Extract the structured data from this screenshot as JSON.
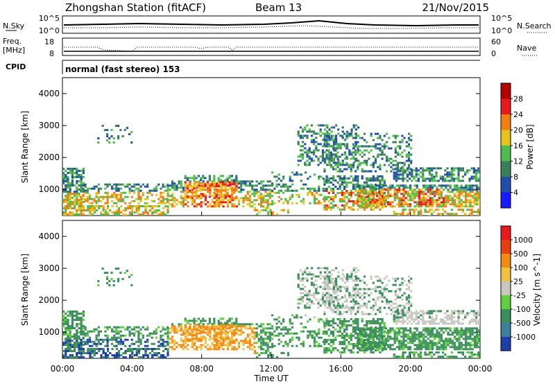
{
  "header": {
    "station": "Zhongshan Station (fitACF)",
    "beam": "Beam 13",
    "date": "21/Nov/2015"
  },
  "small_panels": {
    "nsky_label": "N.Sky",
    "nsearch_label": "N.Search",
    "freq_label_1": "Freq.",
    "freq_label_2": "[MHz]",
    "nave_label": "Nave",
    "cpid_label": "CPID",
    "cpid_value": "normal (fast stereo) 153",
    "noise_ticks": [
      "10^5",
      "10^0"
    ],
    "freq_ticks": [
      "18",
      "8"
    ],
    "nave_ticks": [
      "60",
      "0"
    ]
  },
  "chart_data": [
    {
      "type": "heatmap",
      "name": "power",
      "ylabel": "Slant Range [km]",
      "ylim": [
        180,
        4500
      ],
      "yticks": [
        1000,
        2000,
        3000,
        4000
      ],
      "xlim": [
        0,
        24
      ],
      "colorbar_label": "Power [dB]",
      "colorbar_ticks": [
        "28",
        "24",
        "20",
        "16",
        "12",
        "8",
        "4"
      ],
      "colors": [
        "#1a1aff",
        "#1f4fa8",
        "#3b7f5a",
        "#4dbb4d",
        "#e6c31a",
        "#f07f10",
        "#e61a1a",
        "#b30000"
      ],
      "grid": false
    },
    {
      "type": "heatmap",
      "name": "velocity",
      "ylabel": "Slant Range [km]",
      "ylim": [
        180,
        4500
      ],
      "yticks": [
        1000,
        2000,
        3000,
        4000
      ],
      "xlim": [
        0,
        24
      ],
      "xlabel": "Time UT",
      "xticks": [
        "00:00",
        "04:00",
        "08:00",
        "12:00",
        "16:00",
        "20:00",
        "00:00"
      ],
      "colorbar_label": "Velocity [m s^-1]",
      "colorbar_ticks": [
        "1000",
        "500",
        "100",
        "25",
        "-25",
        "-100",
        "-500",
        "-1000"
      ],
      "colors": [
        "#1f3fa8",
        "#3b7f9a",
        "#3b8f5a",
        "#5fcf3f",
        "#c8c8c0",
        "#f0c040",
        "#f08a10",
        "#e64010",
        "#e61a1a"
      ],
      "grid": false
    }
  ]
}
